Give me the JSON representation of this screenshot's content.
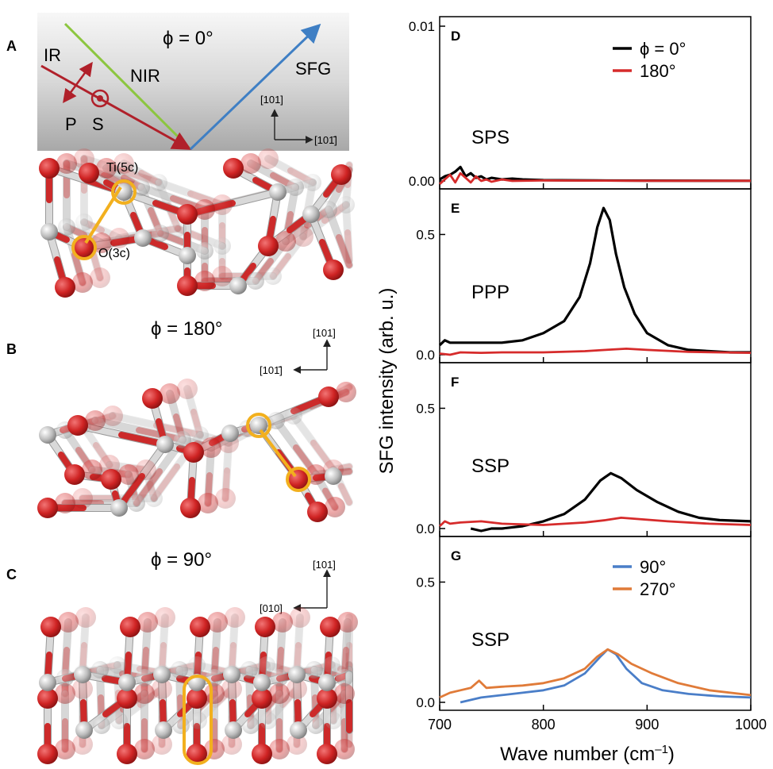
{
  "panels": {
    "A": {
      "letter": "A",
      "phi_label": "ϕ = 0°",
      "ir": "IR",
      "nir": "NIR",
      "sfg": "SFG",
      "p": "P",
      "s": "S",
      "axis_up": "[101]",
      "axis_side": "[101̄]",
      "ti_label": "Ti(5c)",
      "o_label": "O(3c)"
    },
    "B": {
      "letter": "B",
      "phi_label": "ϕ = 180°",
      "axis_up": "[101]",
      "axis_side": "[101̄]"
    },
    "C": {
      "letter": "C",
      "phi_label": "ϕ = 90°",
      "axis_up": "[101]",
      "axis_side": "[010]"
    }
  },
  "colors": {
    "black_series": "#000000",
    "red_series": "#d62b2b",
    "blue_series": "#4a7ec8",
    "orange_series": "#e07b39",
    "ir_beam": "#b0202a",
    "nir_beam": "#8cc63f",
    "sfg_beam": "#3f7fc4",
    "highlight": "#f2b01e",
    "oxygen": "#d42a2a",
    "titanium": "#c8c8c8"
  },
  "chart_data": {
    "type": "line",
    "xlabel": "Wave number (cm–1)",
    "xlabel_main": "Wave number (cm",
    "xlabel_sup": "–1",
    "xlabel_end": ")",
    "ylabel": "SFG intensity (arb. u.)",
    "xlim": [
      700,
      1000
    ],
    "xticks": [
      "700",
      "800",
      "900",
      "1000"
    ],
    "subplots": [
      {
        "letter": "D",
        "mode": "SPS",
        "ylim": [
          0,
          0.01
        ],
        "yticks": [
          "0.00",
          "0.01"
        ],
        "legend": [
          "ϕ = 0°",
          "180°"
        ],
        "series": [
          {
            "color": "black",
            "points": [
              [
                700,
                0.0001
              ],
              [
                705,
                0.0003
              ],
              [
                710,
                0.0004
              ],
              [
                715,
                0.0006
              ],
              [
                720,
                0.0009
              ],
              [
                725,
                0.0003
              ],
              [
                730,
                0.0005
              ],
              [
                735,
                0.0002
              ],
              [
                740,
                0.0003
              ],
              [
                745,
                0.0001
              ],
              [
                750,
                0.0002
              ],
              [
                760,
                0.0001
              ],
              [
                770,
                0.00015
              ],
              [
                780,
                0.0001
              ],
              [
                800,
                5e-05
              ],
              [
                850,
                3e-05
              ],
              [
                900,
                2e-05
              ],
              [
                1000,
                1e-05
              ]
            ]
          },
          {
            "color": "red",
            "points": [
              [
                700,
                -0.0002
              ],
              [
                705,
                0.0001
              ],
              [
                710,
                0.0004
              ],
              [
                715,
                -0.0001
              ],
              [
                720,
                0.0005
              ],
              [
                725,
                0.0002
              ],
              [
                730,
                -0.0001
              ],
              [
                735,
                0.0003
              ],
              [
                740,
                0.0
              ],
              [
                745,
                0.0001
              ],
              [
                750,
                -5e-05
              ],
              [
                760,
                0.0001
              ],
              [
                770,
                0.0
              ],
              [
                800,
                3e-05
              ],
              [
                850,
                2e-05
              ],
              [
                900,
                1e-05
              ],
              [
                1000,
                1e-05
              ]
            ]
          }
        ]
      },
      {
        "letter": "E",
        "mode": "PPP",
        "ylim": [
          0,
          0.65
        ],
        "yticks": [
          "0.0",
          "0.5"
        ],
        "series": [
          {
            "color": "black",
            "points": [
              [
                700,
                0.04
              ],
              [
                705,
                0.06
              ],
              [
                710,
                0.05
              ],
              [
                720,
                0.05
              ],
              [
                740,
                0.05
              ],
              [
                760,
                0.05
              ],
              [
                780,
                0.06
              ],
              [
                800,
                0.09
              ],
              [
                820,
                0.14
              ],
              [
                835,
                0.24
              ],
              [
                845,
                0.38
              ],
              [
                852,
                0.53
              ],
              [
                858,
                0.61
              ],
              [
                864,
                0.56
              ],
              [
                870,
                0.42
              ],
              [
                878,
                0.28
              ],
              [
                888,
                0.17
              ],
              [
                900,
                0.09
              ],
              [
                920,
                0.04
              ],
              [
                940,
                0.02
              ],
              [
                960,
                0.015
              ],
              [
                980,
                0.01
              ],
              [
                1000,
                0.01
              ]
            ]
          },
          {
            "color": "red",
            "points": [
              [
                700,
                0.005
              ],
              [
                710,
                0.0
              ],
              [
                720,
                0.01
              ],
              [
                740,
                0.008
              ],
              [
                760,
                0.01
              ],
              [
                800,
                0.01
              ],
              [
                840,
                0.015
              ],
              [
                860,
                0.02
              ],
              [
                880,
                0.025
              ],
              [
                900,
                0.02
              ],
              [
                940,
                0.012
              ],
              [
                1000,
                0.008
              ]
            ]
          }
        ]
      },
      {
        "letter": "F",
        "mode": "SSP",
        "ylim": [
          0,
          0.65
        ],
        "yticks": [
          "0.0",
          "0.5"
        ],
        "series": [
          {
            "color": "black",
            "points": [
              [
                730,
                0.0
              ],
              [
                740,
                -0.01
              ],
              [
                750,
                0.0
              ],
              [
                760,
                0.0
              ],
              [
                780,
                0.01
              ],
              [
                800,
                0.03
              ],
              [
                820,
                0.06
              ],
              [
                840,
                0.12
              ],
              [
                855,
                0.2
              ],
              [
                865,
                0.23
              ],
              [
                875,
                0.21
              ],
              [
                890,
                0.16
              ],
              [
                910,
                0.11
              ],
              [
                930,
                0.07
              ],
              [
                950,
                0.045
              ],
              [
                970,
                0.035
              ],
              [
                1000,
                0.03
              ]
            ]
          },
          {
            "color": "red",
            "points": [
              [
                700,
                0.01
              ],
              [
                705,
                0.03
              ],
              [
                710,
                0.02
              ],
              [
                720,
                0.025
              ],
              [
                740,
                0.03
              ],
              [
                760,
                0.02
              ],
              [
                800,
                0.015
              ],
              [
                840,
                0.025
              ],
              [
                860,
                0.035
              ],
              [
                875,
                0.045
              ],
              [
                890,
                0.04
              ],
              [
                920,
                0.03
              ],
              [
                960,
                0.02
              ],
              [
                1000,
                0.015
              ]
            ]
          }
        ]
      },
      {
        "letter": "G",
        "mode": "SSP",
        "ylim": [
          0,
          0.65
        ],
        "yticks": [
          "0.0",
          "0.5"
        ],
        "legend": [
          "90°",
          "270°"
        ],
        "series": [
          {
            "color": "blue",
            "points": [
              [
                720,
                0.0
              ],
              [
                740,
                0.02
              ],
              [
                760,
                0.03
              ],
              [
                780,
                0.04
              ],
              [
                800,
                0.05
              ],
              [
                820,
                0.07
              ],
              [
                840,
                0.12
              ],
              [
                855,
                0.19
              ],
              [
                862,
                0.22
              ],
              [
                870,
                0.2
              ],
              [
                880,
                0.14
              ],
              [
                895,
                0.08
              ],
              [
                915,
                0.05
              ],
              [
                940,
                0.035
              ],
              [
                970,
                0.025
              ],
              [
                1000,
                0.02
              ]
            ]
          },
          {
            "color": "orange",
            "points": [
              [
                700,
                0.02
              ],
              [
                710,
                0.04
              ],
              [
                720,
                0.05
              ],
              [
                730,
                0.06
              ],
              [
                738,
                0.09
              ],
              [
                745,
                0.06
              ],
              [
                760,
                0.065
              ],
              [
                780,
                0.07
              ],
              [
                800,
                0.08
              ],
              [
                820,
                0.1
              ],
              [
                840,
                0.14
              ],
              [
                852,
                0.19
              ],
              [
                862,
                0.22
              ],
              [
                872,
                0.2
              ],
              [
                885,
                0.16
              ],
              [
                905,
                0.12
              ],
              [
                930,
                0.08
              ],
              [
                960,
                0.05
              ],
              [
                1000,
                0.03
              ]
            ]
          }
        ]
      }
    ]
  }
}
